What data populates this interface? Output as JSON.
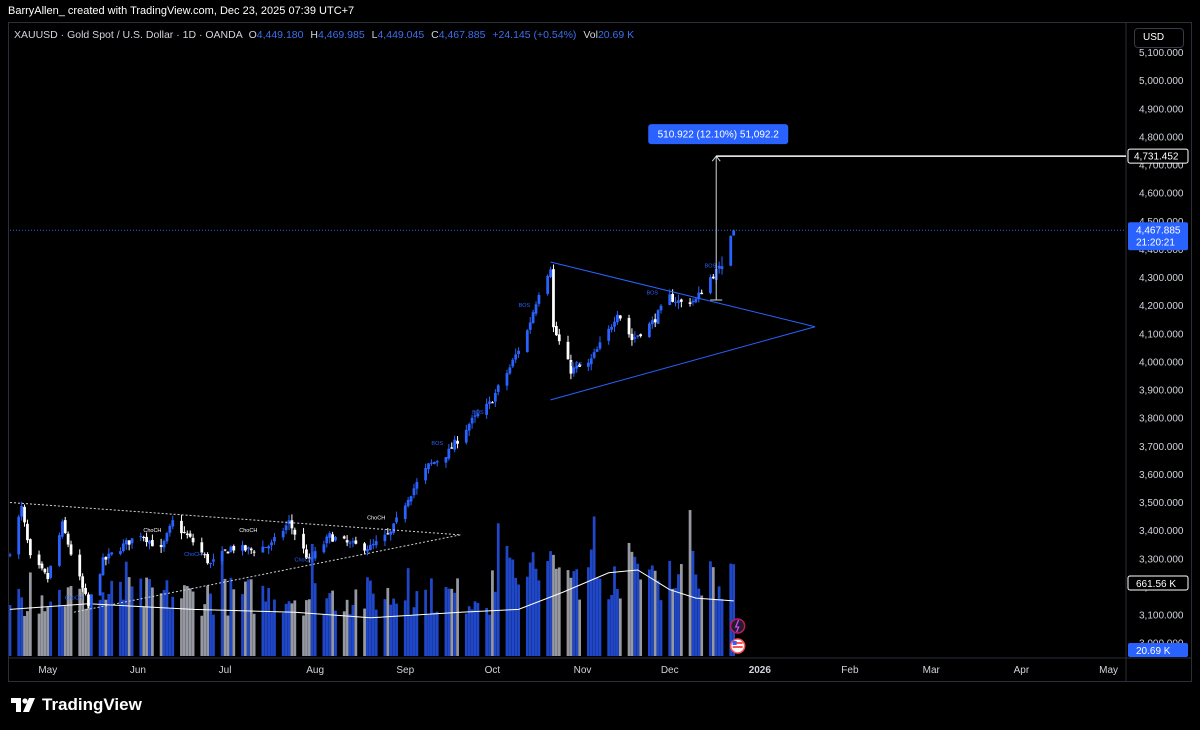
{
  "header": {
    "caption": "BarryAllen_ created with TradingView.com, Dec 23, 2025 07:39 UTC+7"
  },
  "legend": {
    "symbol": "XAUUSD · Gold Spot / U.S. Dollar · 1D · OANDA",
    "o_label": "O",
    "o": "4,449.180",
    "h_label": "H",
    "h": "4,469.985",
    "l_label": "L",
    "l": "4,449.045",
    "c_label": "C",
    "c": "4,467.885",
    "change": "+24.145 (+0.54%)",
    "vol_label": "Vol",
    "vol": "20.69 K"
  },
  "currency_button": "USD",
  "footer": {
    "brand": "TradingView"
  },
  "colors": {
    "up": "#2962ff",
    "down": "#ffffff",
    "vol_up": "#1f47c7",
    "vol_down": "#9598a1",
    "accent": "#2962ff"
  },
  "chart_data": {
    "type": "candlestick",
    "y_ticks": [
      "5,100.000",
      "5,000.000",
      "4,900.000",
      "4,800.000",
      "4,700.000",
      "4,600.000",
      "4,500.000",
      "4,400.000",
      "4,300.000",
      "4,200.000",
      "4,100.000",
      "4,000.000",
      "3,900.000",
      "3,800.000",
      "3,700.000",
      "3,600.000",
      "3,500.000",
      "3,400.000",
      "3,300.000",
      "3,200.000",
      "3,100.000",
      "3,000.000"
    ],
    "ylim": [
      2940,
      5180
    ],
    "x_ticks": [
      {
        "label": "May",
        "date": "2025-05-01"
      },
      {
        "label": "Jun",
        "date": "2025-06-01"
      },
      {
        "label": "Jul",
        "date": "2025-07-01"
      },
      {
        "label": "Aug",
        "date": "2025-08-01"
      },
      {
        "label": "Sep",
        "date": "2025-09-01"
      },
      {
        "label": "Oct",
        "date": "2025-10-01"
      },
      {
        "label": "Nov",
        "date": "2025-11-01"
      },
      {
        "label": "Dec",
        "date": "2025-12-01"
      },
      {
        "label": "2026",
        "date": "2026-01-01",
        "bold": true
      },
      {
        "label": "Feb",
        "date": "2026-02-01"
      },
      {
        "label": "Mar",
        "date": "2026-03-01"
      },
      {
        "label": "Apr",
        "date": "2026-04-01"
      },
      {
        "label": "May",
        "date": "2026-05-01"
      }
    ],
    "xlim": [
      "2025-04-18",
      "2026-05-07"
    ],
    "price_path": [
      [
        "2025-04-18",
        3330
      ],
      [
        "2025-04-22",
        3480
      ],
      [
        "2025-04-25",
        3300
      ],
      [
        "2025-05-01",
        3230
      ],
      [
        "2025-05-06",
        3420
      ],
      [
        "2025-05-09",
        3320
      ],
      [
        "2025-05-15",
        3130
      ],
      [
        "2025-05-20",
        3290
      ],
      [
        "2025-05-26",
        3340
      ],
      [
        "2025-06-02",
        3390
      ],
      [
        "2025-06-09",
        3330
      ],
      [
        "2025-06-13",
        3430
      ],
      [
        "2025-06-20",
        3360
      ],
      [
        "2025-06-26",
        3280
      ],
      [
        "2025-07-03",
        3340
      ],
      [
        "2025-07-10",
        3330
      ],
      [
        "2025-07-17",
        3350
      ],
      [
        "2025-07-23",
        3430
      ],
      [
        "2025-07-30",
        3290
      ],
      [
        "2025-08-06",
        3380
      ],
      [
        "2025-08-13",
        3350
      ],
      [
        "2025-08-20",
        3340
      ],
      [
        "2025-08-27",
        3390
      ],
      [
        "2025-09-02",
        3520
      ],
      [
        "2025-09-09",
        3630
      ],
      [
        "2025-09-16",
        3680
      ],
      [
        "2025-09-23",
        3780
      ],
      [
        "2025-09-30",
        3850
      ],
      [
        "2025-10-07",
        3980
      ],
      [
        "2025-10-13",
        4110
      ],
      [
        "2025-10-17",
        4250
      ],
      [
        "2025-10-21",
        4340
      ],
      [
        "2025-10-22",
        4120
      ],
      [
        "2025-10-28",
        3970
      ],
      [
        "2025-11-03",
        3990
      ],
      [
        "2025-11-10",
        4110
      ],
      [
        "2025-11-13",
        4180
      ],
      [
        "2025-11-18",
        4080
      ],
      [
        "2025-11-25",
        4140
      ],
      [
        "2025-12-01",
        4230
      ],
      [
        "2025-12-05",
        4210
      ],
      [
        "2025-12-10",
        4220
      ],
      [
        "2025-12-15",
        4300
      ],
      [
        "2025-12-19",
        4340
      ],
      [
        "2025-12-22",
        4448
      ],
      [
        "2025-12-23",
        4468
      ]
    ],
    "candles": [
      {
        "date": "2025-12-19",
        "open": 4330,
        "high": 4375,
        "low": 4310,
        "close": 4340
      },
      {
        "date": "2025-12-22",
        "open": 4342,
        "high": 4450,
        "low": 4340,
        "close": 4448
      },
      {
        "date": "2025-12-23",
        "open": 4449.18,
        "high": 4469.985,
        "low": 4449.045,
        "close": 4467.885
      }
    ],
    "volume_ma_path": [
      [
        "2025-04-18",
        3120
      ],
      [
        "2025-05-15",
        3140
      ],
      [
        "2025-06-20",
        3120
      ],
      [
        "2025-07-25",
        3110
      ],
      [
        "2025-08-20",
        3090
      ],
      [
        "2025-09-20",
        3110
      ],
      [
        "2025-10-10",
        3120
      ],
      [
        "2025-10-25",
        3180
      ],
      [
        "2025-11-10",
        3250
      ],
      [
        "2025-11-20",
        3260
      ],
      [
        "2025-12-01",
        3190
      ],
      [
        "2025-12-10",
        3160
      ],
      [
        "2025-12-23",
        3150
      ]
    ],
    "last_price": {
      "value": "4,467.885",
      "countdown": "21:20:21"
    },
    "target_price": {
      "value": "4,731.452"
    },
    "volume_ma_label": "661.56 K",
    "volume_label": "20.69 K",
    "measure": {
      "label": "510.922 (12.10%) 51,092.2",
      "from_price": 4220,
      "to_price": 4731.452,
      "date": "2025-12-17"
    },
    "annotations": [
      "ChoCH",
      "ChoCH",
      "ChoCH",
      "ChoCH",
      "ChoCH",
      "ChoCH",
      "BOS",
      "BOS",
      "BOS",
      "BOS",
      "BOS",
      "BOS"
    ]
  }
}
